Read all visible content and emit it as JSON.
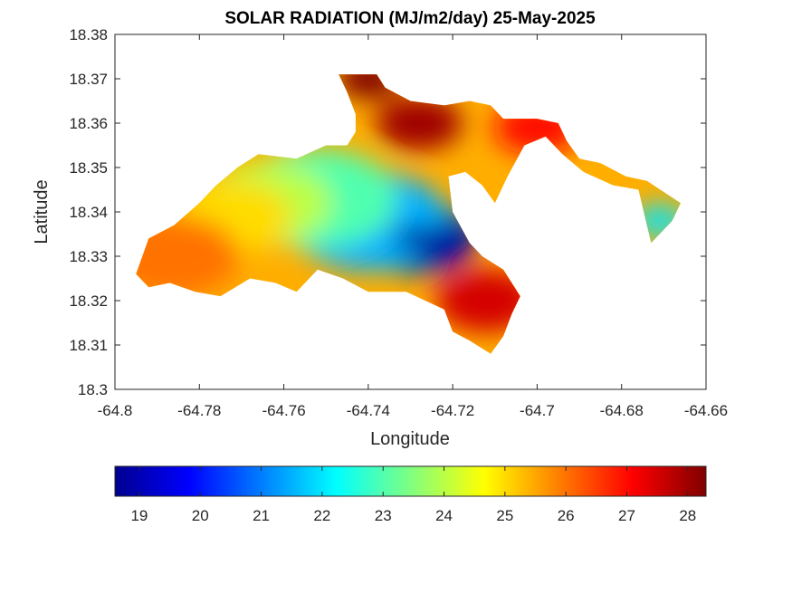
{
  "chart_data": {
    "type": "heatmap",
    "title": "SOLAR RADIATION (MJ/m2/day) 25-May-2025",
    "xlabel": "Longitude",
    "ylabel": "Latitude",
    "xlim": [
      -64.8,
      -64.66
    ],
    "ylim": [
      18.3,
      18.38
    ],
    "xticks": [
      "-64.8",
      "-64.78",
      "-64.76",
      "-64.74",
      "-64.72",
      "-64.7",
      "-64.68",
      "-64.66"
    ],
    "yticks": [
      "18.3",
      "18.31",
      "18.32",
      "18.33",
      "18.34",
      "18.35",
      "18.36",
      "18.37",
      "18.38"
    ],
    "colormap": "jet",
    "clim": [
      18.6,
      28.3
    ],
    "colorbar_ticks": [
      "19",
      "20",
      "21",
      "22",
      "23",
      "24",
      "25",
      "26",
      "27",
      "28"
    ],
    "colorbar_location": "bottom",
    "grid": false,
    "land_outline": [
      [
        -64.795,
        18.326
      ],
      [
        -64.792,
        18.334
      ],
      [
        -64.786,
        18.337
      ],
      [
        -64.78,
        18.342
      ],
      [
        -64.776,
        18.346
      ],
      [
        -64.771,
        18.35
      ],
      [
        -64.766,
        18.353
      ],
      [
        -64.757,
        18.352
      ],
      [
        -64.75,
        18.355
      ],
      [
        -64.745,
        18.355
      ],
      [
        -64.743,
        18.358
      ],
      [
        -64.743,
        18.362
      ],
      [
        -64.745,
        18.367
      ],
      [
        -64.747,
        18.371
      ],
      [
        -64.738,
        18.371
      ],
      [
        -64.736,
        18.368
      ],
      [
        -64.73,
        18.365
      ],
      [
        -64.722,
        18.364
      ],
      [
        -64.716,
        18.365
      ],
      [
        -64.711,
        18.364
      ],
      [
        -64.708,
        18.361
      ],
      [
        -64.7,
        18.361
      ],
      [
        -64.695,
        18.36
      ],
      [
        -64.693,
        18.356
      ],
      [
        -64.69,
        18.352
      ],
      [
        -64.685,
        18.351
      ],
      [
        -64.679,
        18.348
      ],
      [
        -64.674,
        18.347
      ],
      [
        -64.666,
        18.342
      ],
      [
        -64.668,
        18.338
      ],
      [
        -64.671,
        18.335
      ],
      [
        -64.673,
        18.333
      ],
      [
        -64.674,
        18.337
      ],
      [
        -64.676,
        18.345
      ],
      [
        -64.682,
        18.346
      ],
      [
        -64.689,
        18.349
      ],
      [
        -64.694,
        18.353
      ],
      [
        -64.698,
        18.357
      ],
      [
        -64.703,
        18.355
      ],
      [
        -64.707,
        18.348
      ],
      [
        -64.71,
        18.342
      ],
      [
        -64.713,
        18.346
      ],
      [
        -64.717,
        18.349
      ],
      [
        -64.721,
        18.348
      ],
      [
        -64.72,
        18.34
      ],
      [
        -64.716,
        18.333
      ],
      [
        -64.713,
        18.33
      ],
      [
        -64.708,
        18.327
      ],
      [
        -64.704,
        18.321
      ],
      [
        -64.706,
        18.317
      ],
      [
        -64.708,
        18.312
      ],
      [
        -64.711,
        18.308
      ],
      [
        -64.716,
        18.311
      ],
      [
        -64.72,
        18.313
      ],
      [
        -64.722,
        18.318
      ],
      [
        -64.731,
        18.322
      ],
      [
        -64.74,
        18.322
      ],
      [
        -64.746,
        18.325
      ],
      [
        -64.752,
        18.327
      ],
      [
        -64.757,
        18.322
      ],
      [
        -64.762,
        18.324
      ],
      [
        -64.768,
        18.325
      ],
      [
        -64.775,
        18.321
      ],
      [
        -64.781,
        18.322
      ],
      [
        -64.787,
        18.324
      ],
      [
        -64.792,
        18.323
      ],
      [
        -64.795,
        18.326
      ]
    ],
    "field_centers": [
      {
        "lon": -64.728,
        "lat": 18.334,
        "value": 19.0
      },
      {
        "lon": -64.74,
        "lat": 18.338,
        "value": 21.5
      },
      {
        "lon": -64.752,
        "lat": 18.343,
        "value": 23.0
      },
      {
        "lon": -64.764,
        "lat": 18.342,
        "value": 24.0
      },
      {
        "lon": -64.772,
        "lat": 18.339,
        "value": 25.0
      },
      {
        "lon": -64.786,
        "lat": 18.33,
        "value": 26.0
      },
      {
        "lon": -64.728,
        "lat": 18.36,
        "value": 28.0
      },
      {
        "lon": -64.74,
        "lat": 18.37,
        "value": 28.3
      },
      {
        "lon": -64.712,
        "lat": 18.32,
        "value": 27.5
      },
      {
        "lon": -64.7,
        "lat": 18.359,
        "value": 27.0
      },
      {
        "lon": -64.671,
        "lat": 18.338,
        "value": 22.0
      }
    ]
  }
}
